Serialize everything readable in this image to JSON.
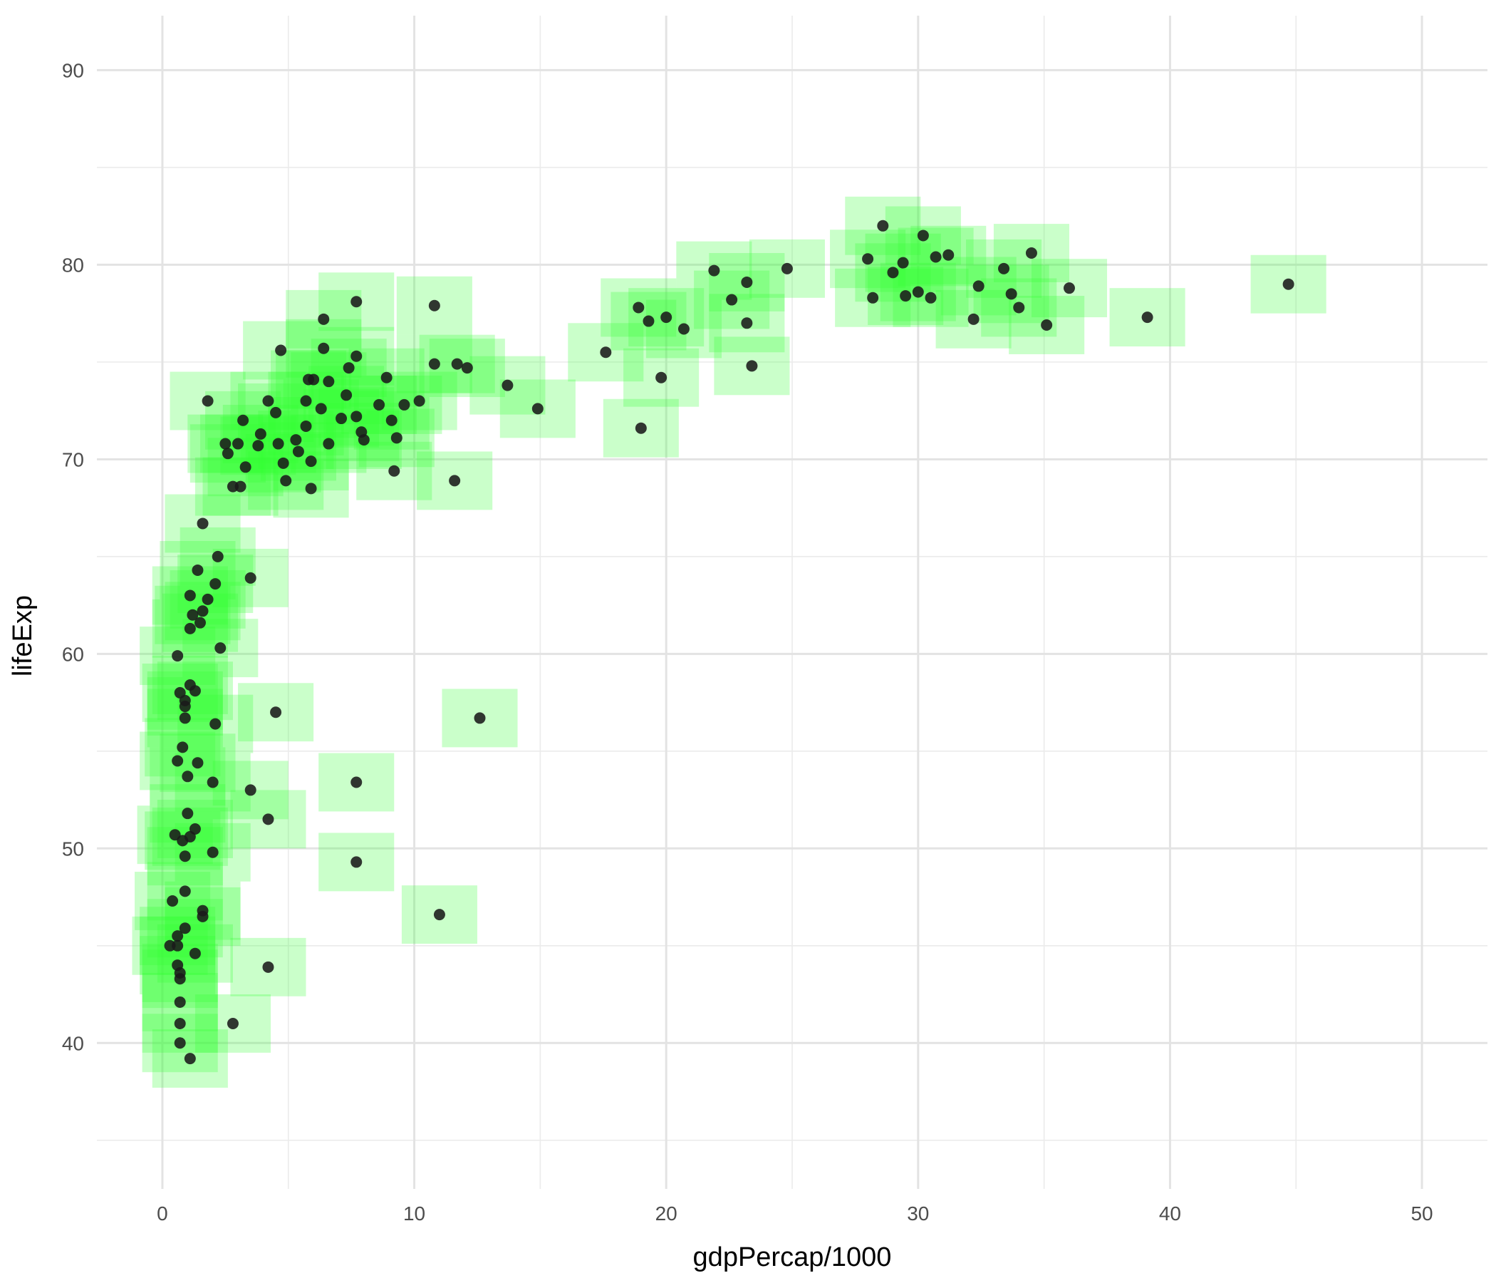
{
  "chart_data": {
    "type": "scatter",
    "xlabel": "gdpPercap/1000",
    "ylabel": "lifeExp",
    "xlim": [
      -2.6,
      52.6
    ],
    "ylim": [
      32.5,
      92.8
    ],
    "x_ticks": [
      0,
      10,
      20,
      30,
      40,
      50
    ],
    "y_ticks": [
      40,
      50,
      60,
      70,
      80,
      90
    ],
    "grid": true,
    "point_color": "#1a1a1a",
    "box_color": "#33ff33",
    "box_half_width": 1.5,
    "box_half_height": 1.5,
    "points": [
      {
        "x": 44.7,
        "y": 79.0
      },
      {
        "x": 39.1,
        "y": 77.3
      },
      {
        "x": 36.0,
        "y": 78.8
      },
      {
        "x": 35.1,
        "y": 76.9
      },
      {
        "x": 34.5,
        "y": 80.6
      },
      {
        "x": 34.0,
        "y": 77.8
      },
      {
        "x": 33.7,
        "y": 78.5
      },
      {
        "x": 33.4,
        "y": 79.8
      },
      {
        "x": 32.4,
        "y": 78.9
      },
      {
        "x": 32.2,
        "y": 77.2
      },
      {
        "x": 31.2,
        "y": 80.5
      },
      {
        "x": 30.7,
        "y": 80.4
      },
      {
        "x": 30.5,
        "y": 78.3
      },
      {
        "x": 30.2,
        "y": 81.5
      },
      {
        "x": 30.0,
        "y": 78.6
      },
      {
        "x": 29.5,
        "y": 78.4
      },
      {
        "x": 29.4,
        "y": 80.1
      },
      {
        "x": 29.0,
        "y": 79.6
      },
      {
        "x": 28.6,
        "y": 82.0
      },
      {
        "x": 28.2,
        "y": 78.3
      },
      {
        "x": 28.0,
        "y": 80.3
      },
      {
        "x": 24.8,
        "y": 79.8
      },
      {
        "x": 23.4,
        "y": 74.8
      },
      {
        "x": 23.2,
        "y": 77.0
      },
      {
        "x": 23.2,
        "y": 79.1
      },
      {
        "x": 22.6,
        "y": 78.2
      },
      {
        "x": 21.9,
        "y": 79.7
      },
      {
        "x": 20.7,
        "y": 76.7
      },
      {
        "x": 20.0,
        "y": 77.3
      },
      {
        "x": 19.8,
        "y": 74.2
      },
      {
        "x": 19.3,
        "y": 77.1
      },
      {
        "x": 19.0,
        "y": 71.6
      },
      {
        "x": 18.9,
        "y": 77.8
      },
      {
        "x": 17.6,
        "y": 75.5
      },
      {
        "x": 14.9,
        "y": 72.6
      },
      {
        "x": 13.7,
        "y": 73.8
      },
      {
        "x": 12.6,
        "y": 56.7
      },
      {
        "x": 12.1,
        "y": 74.7
      },
      {
        "x": 11.7,
        "y": 74.9
      },
      {
        "x": 11.6,
        "y": 68.9
      },
      {
        "x": 11.0,
        "y": 46.6
      },
      {
        "x": 10.8,
        "y": 77.9
      },
      {
        "x": 10.8,
        "y": 74.9
      },
      {
        "x": 10.2,
        "y": 73.0
      },
      {
        "x": 9.6,
        "y": 72.8
      },
      {
        "x": 9.3,
        "y": 71.1
      },
      {
        "x": 9.2,
        "y": 69.4
      },
      {
        "x": 9.1,
        "y": 72.0
      },
      {
        "x": 8.9,
        "y": 74.2
      },
      {
        "x": 8.6,
        "y": 72.8
      },
      {
        "x": 7.7,
        "y": 78.1
      },
      {
        "x": 7.7,
        "y": 53.4
      },
      {
        "x": 7.7,
        "y": 49.3
      },
      {
        "x": 7.7,
        "y": 75.3
      },
      {
        "x": 7.7,
        "y": 72.2
      },
      {
        "x": 8.0,
        "y": 71.0
      },
      {
        "x": 7.9,
        "y": 71.4
      },
      {
        "x": 7.4,
        "y": 74.7
      },
      {
        "x": 7.3,
        "y": 73.3
      },
      {
        "x": 7.1,
        "y": 72.1
      },
      {
        "x": 6.6,
        "y": 74.0
      },
      {
        "x": 6.6,
        "y": 70.8
      },
      {
        "x": 6.4,
        "y": 77.2
      },
      {
        "x": 6.4,
        "y": 75.7
      },
      {
        "x": 6.3,
        "y": 72.6
      },
      {
        "x": 6.0,
        "y": 74.1
      },
      {
        "x": 5.9,
        "y": 69.9
      },
      {
        "x": 5.9,
        "y": 68.5
      },
      {
        "x": 5.8,
        "y": 74.1
      },
      {
        "x": 5.7,
        "y": 73.0
      },
      {
        "x": 5.7,
        "y": 71.7
      },
      {
        "x": 5.4,
        "y": 70.4
      },
      {
        "x": 5.3,
        "y": 71.0
      },
      {
        "x": 4.8,
        "y": 69.8
      },
      {
        "x": 4.9,
        "y": 68.9
      },
      {
        "x": 4.7,
        "y": 75.6
      },
      {
        "x": 4.6,
        "y": 70.8
      },
      {
        "x": 4.5,
        "y": 72.4
      },
      {
        "x": 4.5,
        "y": 57.0
      },
      {
        "x": 4.2,
        "y": 73.0
      },
      {
        "x": 4.2,
        "y": 51.5
      },
      {
        "x": 4.2,
        "y": 43.9
      },
      {
        "x": 3.9,
        "y": 71.3
      },
      {
        "x": 3.8,
        "y": 70.7
      },
      {
        "x": 3.5,
        "y": 63.9
      },
      {
        "x": 3.5,
        "y": 53.0
      },
      {
        "x": 3.3,
        "y": 69.6
      },
      {
        "x": 3.2,
        "y": 72.0
      },
      {
        "x": 3.1,
        "y": 68.6
      },
      {
        "x": 3.0,
        "y": 70.8
      },
      {
        "x": 2.8,
        "y": 68.6
      },
      {
        "x": 2.8,
        "y": 41.0
      },
      {
        "x": 2.6,
        "y": 70.3
      },
      {
        "x": 2.5,
        "y": 70.8
      },
      {
        "x": 2.3,
        "y": 60.3
      },
      {
        "x": 2.2,
        "y": 65.0
      },
      {
        "x": 2.1,
        "y": 63.6
      },
      {
        "x": 2.1,
        "y": 56.4
      },
      {
        "x": 2.0,
        "y": 53.4
      },
      {
        "x": 2.0,
        "y": 49.8
      },
      {
        "x": 1.8,
        "y": 73.0
      },
      {
        "x": 1.6,
        "y": 66.7
      },
      {
        "x": 1.8,
        "y": 62.8
      },
      {
        "x": 1.6,
        "y": 62.2
      },
      {
        "x": 1.5,
        "y": 61.6
      },
      {
        "x": 1.4,
        "y": 64.3
      },
      {
        "x": 1.2,
        "y": 62.0
      },
      {
        "x": 1.1,
        "y": 63.0
      },
      {
        "x": 1.1,
        "y": 61.3
      },
      {
        "x": 0.6,
        "y": 59.9
      },
      {
        "x": 1.1,
        "y": 58.4
      },
      {
        "x": 1.3,
        "y": 58.1
      },
      {
        "x": 0.7,
        "y": 58.0
      },
      {
        "x": 0.9,
        "y": 57.6
      },
      {
        "x": 0.9,
        "y": 57.3
      },
      {
        "x": 0.9,
        "y": 56.7
      },
      {
        "x": 0.8,
        "y": 55.2
      },
      {
        "x": 0.6,
        "y": 54.5
      },
      {
        "x": 1.4,
        "y": 54.4
      },
      {
        "x": 1.0,
        "y": 53.7
      },
      {
        "x": 1.0,
        "y": 51.8
      },
      {
        "x": 1.3,
        "y": 51.0
      },
      {
        "x": 0.5,
        "y": 50.7
      },
      {
        "x": 1.1,
        "y": 50.6
      },
      {
        "x": 0.8,
        "y": 50.4
      },
      {
        "x": 0.9,
        "y": 49.6
      },
      {
        "x": 1.6,
        "y": 46.8
      },
      {
        "x": 1.6,
        "y": 46.5
      },
      {
        "x": 0.9,
        "y": 47.8
      },
      {
        "x": 0.4,
        "y": 47.3
      },
      {
        "x": 0.9,
        "y": 45.9
      },
      {
        "x": 0.6,
        "y": 45.5
      },
      {
        "x": 0.3,
        "y": 45.0
      },
      {
        "x": 0.6,
        "y": 45.0
      },
      {
        "x": 1.3,
        "y": 44.6
      },
      {
        "x": 0.6,
        "y": 44.0
      },
      {
        "x": 0.7,
        "y": 43.6
      },
      {
        "x": 0.7,
        "y": 43.3
      },
      {
        "x": 0.7,
        "y": 42.1
      },
      {
        "x": 0.7,
        "y": 41.0
      },
      {
        "x": 0.7,
        "y": 40.0
      },
      {
        "x": 1.1,
        "y": 39.2
      }
    ]
  }
}
